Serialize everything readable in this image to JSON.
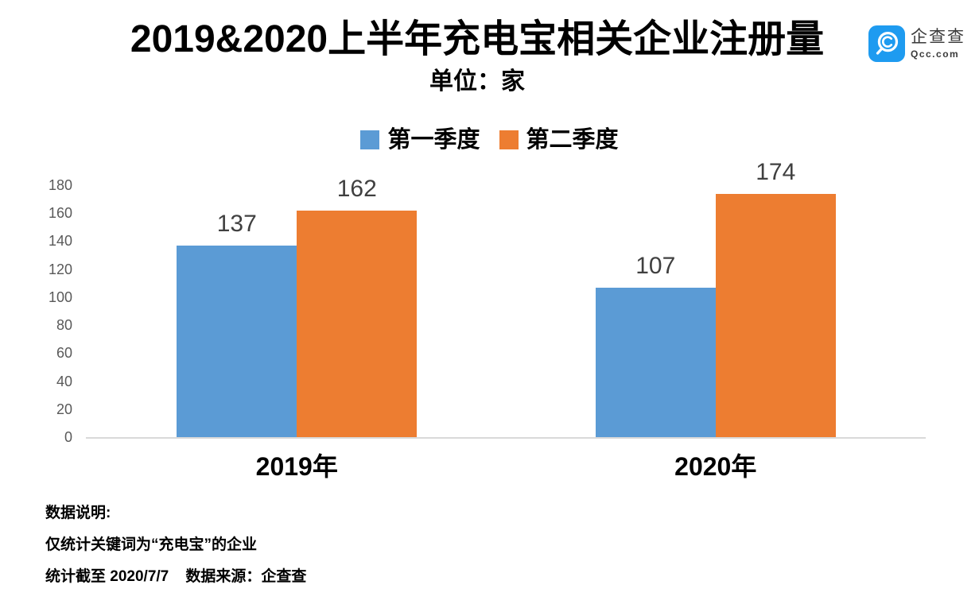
{
  "header": {
    "title": "2019&2020上半年充电宝相关企业注册量",
    "subtitle": "单位：家",
    "logo": {
      "name": "企查查",
      "domain": "Qcc.com",
      "badge_color": "#1E9BF0"
    }
  },
  "chart_data": {
    "type": "bar",
    "title": "2019&2020上半年充电宝相关企业注册量",
    "unit_label": "单位：家",
    "categories": [
      "2019年",
      "2020年"
    ],
    "series": [
      {
        "name": "第一季度",
        "color": "#5B9BD5",
        "values": [
          137,
          107
        ]
      },
      {
        "name": "第二季度",
        "color": "#ED7D31",
        "values": [
          162,
          174
        ]
      }
    ],
    "xlabel": "",
    "ylabel": "",
    "ylim": [
      0,
      180
    ],
    "yticks": [
      0,
      20,
      40,
      60,
      80,
      100,
      120,
      140,
      160,
      180
    ],
    "grid": false,
    "legend_position": "top",
    "data_labels": [
      137,
      162,
      107,
      174
    ],
    "axis_line_color": "#d9d9d9",
    "tick_label_color": "#595959",
    "value_label_color": "#404040"
  },
  "footnotes": {
    "heading": "数据说明:",
    "line1": "仅统计关键词为“充电宝”的企业",
    "line2": "统计截至 2020/7/7    数据来源：企查查"
  }
}
